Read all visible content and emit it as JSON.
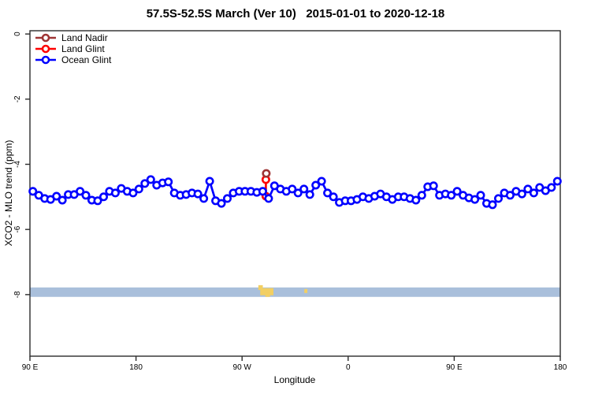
{
  "chart_data": {
    "type": "line",
    "title": "57.5S-52.5S March (Ver 10)   2015-01-01 to 2020-12-18",
    "xlabel": "Longitude",
    "ylabel": "XCO2 - MLO trend (ppm)",
    "grid": false,
    "legend_position": "top-left",
    "x_axis": {
      "range": [
        -270,
        180
      ],
      "ticks": [
        {
          "value": -270,
          "label": "90 E"
        },
        {
          "value": -180,
          "label": "180"
        },
        {
          "value": -90,
          "label": "90 W"
        },
        {
          "value": 0,
          "label": "0"
        },
        {
          "value": 90,
          "label": "90 E"
        },
        {
          "value": 180,
          "label": "180"
        }
      ]
    },
    "y_axis": {
      "range": [
        0.1,
        -9.89
      ],
      "ticks": [
        {
          "value": 0,
          "label": "0"
        },
        {
          "value": -2,
          "label": "-2"
        },
        {
          "value": -4,
          "label": "-4"
        },
        {
          "value": -6,
          "label": "-6"
        },
        {
          "value": -8,
          "label": "-8"
        }
      ]
    },
    "legend": [
      {
        "key": "land_nadir",
        "label": "Land Nadir",
        "color": "#9e3434"
      },
      {
        "key": "land_glint",
        "label": "Land Glint",
        "color": "#ff0000"
      },
      {
        "key": "ocean_glint",
        "label": "Ocean Glint",
        "color": "#0000ff"
      }
    ],
    "series": [
      {
        "name": "Land Nadir",
        "color": "#9e3434",
        "marker": "open-circle",
        "points": [
          [
            -69.5,
            -4.28
          ]
        ]
      },
      {
        "name": "Land Glint",
        "color": "#ff0000",
        "marker": "open-circle",
        "points": [
          [
            -69.8,
            -4.47
          ],
          [
            -69.8,
            -4.98
          ]
        ]
      },
      {
        "name": "Ocean Glint",
        "color": "#0000ff",
        "marker": "open-circle",
        "lon_start": -267.5,
        "lon_step": 5,
        "values": [
          -4.83,
          -4.95,
          -5.05,
          -5.08,
          -4.98,
          -5.1,
          -4.93,
          -4.93,
          -4.83,
          -4.95,
          -5.1,
          -5.12,
          -5.0,
          -4.83,
          -4.88,
          -4.74,
          -4.83,
          -4.88,
          -4.76,
          -4.59,
          -4.47,
          -4.64,
          -4.57,
          -4.54,
          -4.88,
          -4.95,
          -4.93,
          -4.88,
          -4.91,
          -5.05,
          -4.52,
          -5.12,
          -5.2,
          -5.05,
          -4.88,
          -4.83,
          -4.83,
          -4.83,
          -4.86,
          -4.83,
          -5.05,
          -4.66,
          -4.76,
          -4.83,
          -4.76,
          -4.88,
          -4.76,
          -4.93,
          -4.64,
          -4.52,
          -4.88,
          -5.0,
          -5.17,
          -5.12,
          -5.12,
          -5.08,
          -5.0,
          -5.05,
          -4.98,
          -4.91,
          -5.0,
          -5.08,
          -5.0,
          -5.0,
          -5.05,
          -5.1,
          -4.95,
          -4.69,
          -4.66,
          -4.95,
          -4.91,
          -4.95,
          -4.83,
          -4.95,
          -5.03,
          -5.08,
          -4.95,
          -5.2,
          -5.24,
          -5.05,
          -4.88,
          -4.95,
          -4.83,
          -4.91,
          -4.76,
          -4.88,
          -4.71,
          -4.81,
          -4.71,
          -4.52
        ]
      }
    ],
    "map_strip": {
      "ocean_color": "#a9bfdb",
      "land_color": "#f2cf63",
      "top_ppm": -7.78,
      "bottom_ppm": -8.07,
      "land_marks": [
        {
          "lon0": -76.2,
          "lon1": -72.4,
          "top": -7.71,
          "bottom": -7.86
        },
        {
          "lon0": -74.6,
          "lon1": -63.4,
          "top": -7.8,
          "bottom": -8.02
        },
        {
          "lon0": -70.3,
          "lon1": -66.3,
          "top": -7.95,
          "bottom": -8.07
        },
        {
          "lon0": -37.2,
          "lon1": -34.6,
          "top": -7.83,
          "bottom": -7.95
        }
      ]
    },
    "colors": {
      "axis": "#2b2b2b",
      "background": "#ffffff"
    }
  }
}
